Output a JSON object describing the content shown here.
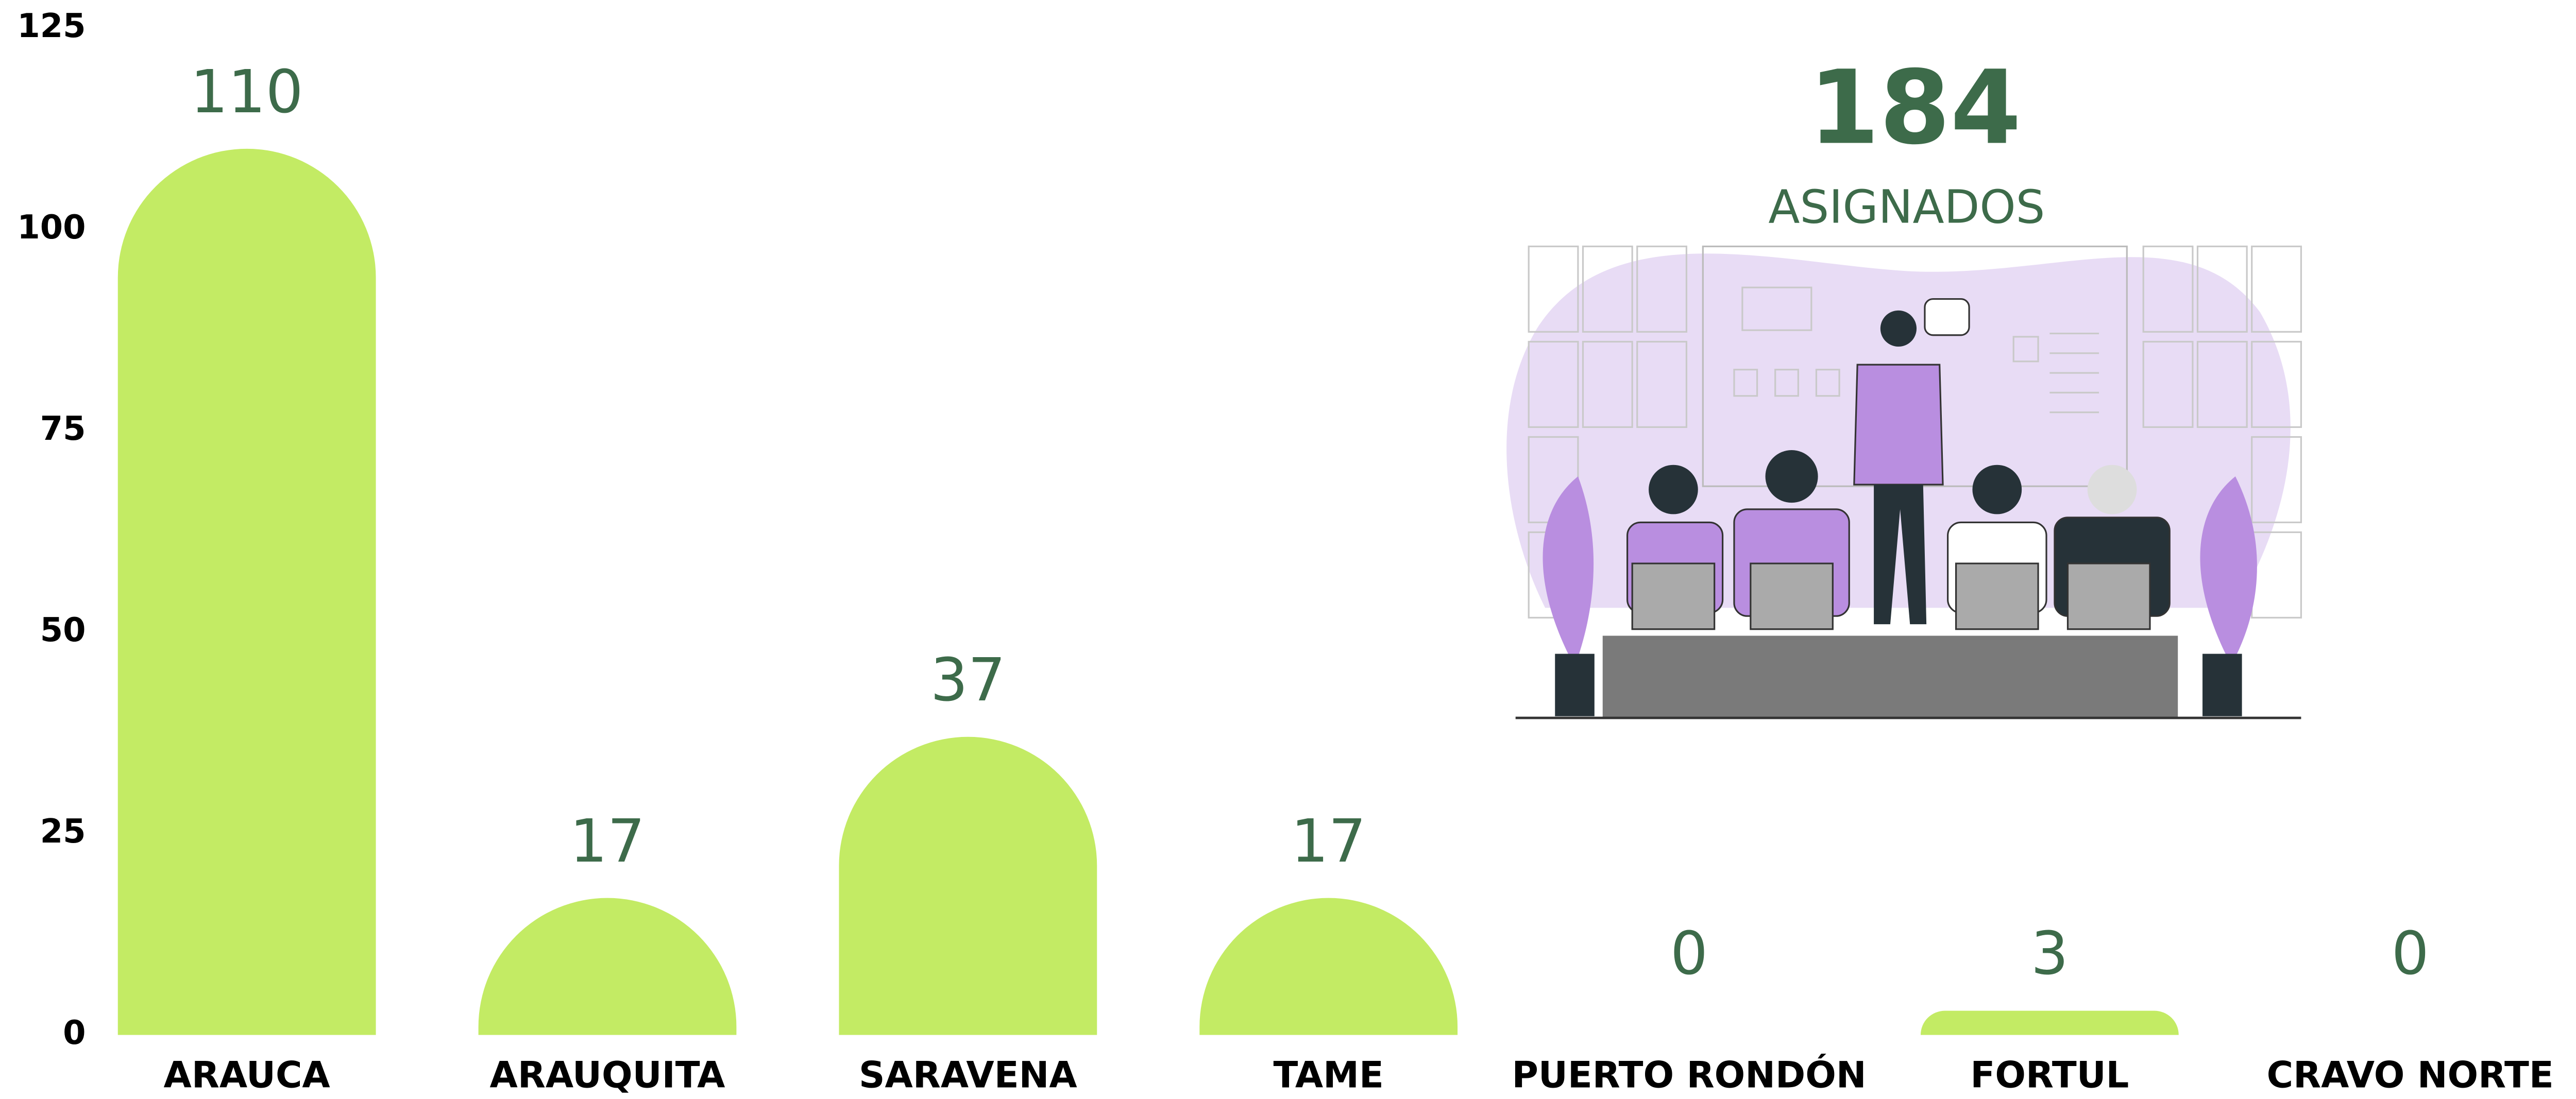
{
  "chart_data": {
    "type": "bar",
    "categories": [
      "ARAUCA",
      "ARAUQUITA",
      "SARAVENA",
      "TAME",
      "PUERTO RONDÓN",
      "FORTUL",
      "CRAVO NORTE"
    ],
    "values": [
      110,
      17,
      37,
      17,
      0,
      3,
      0
    ],
    "color": "#c3eb64",
    "label_color": "#3d6b4a",
    "ylim": [
      0,
      125
    ],
    "yticks": [
      0,
      25,
      50,
      75,
      100,
      125
    ],
    "grid": false,
    "total": 184,
    "total_label": "ASIGNADOS"
  }
}
